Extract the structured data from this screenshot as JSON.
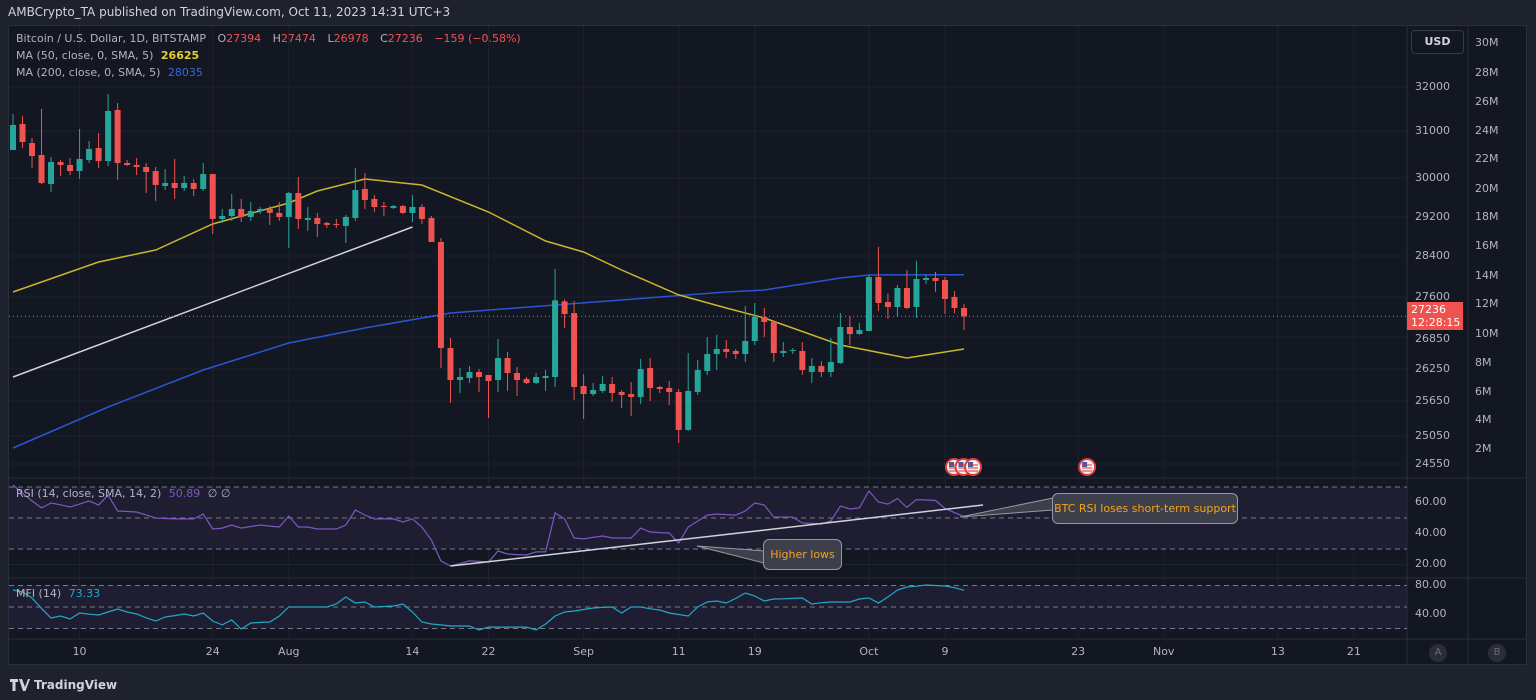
{
  "header": {
    "publisher_line": "AMBCrypto_TA published on TradingView.com, Oct 11, 2023 14:31 UTC+3"
  },
  "legend": {
    "symbol": "Bitcoin / U.S. Dollar, 1D, BITSTAMP",
    "o_label": "O",
    "o_value": "27394",
    "h_label": "H",
    "h_value": "27474",
    "l_label": "L",
    "l_value": "26978",
    "c_label": "C",
    "c_value": "27236",
    "change": "−159 (−0.58%)",
    "ma50_label": "MA (50, close, 0, SMA, 5)",
    "ma50_value": "26625",
    "ma200_label": "MA (200, close, 0, SMA, 5)",
    "ma200_value": "28035"
  },
  "price_axis": {
    "currency_button": "USD",
    "ticks": [
      "32000",
      "31000",
      "30000",
      "29200",
      "28400",
      "27600",
      "26850",
      "26250",
      "25650",
      "25050",
      "24550"
    ],
    "last_price": "27236",
    "countdown": "12:28:15"
  },
  "volume_axis": {
    "ticks": [
      "30M",
      "28M",
      "26M",
      "24M",
      "22M",
      "20M",
      "18M",
      "16M",
      "14M",
      "12M",
      "10M",
      "8M",
      "6M",
      "4M",
      "2M"
    ]
  },
  "time_axis": {
    "ticks": [
      "10",
      "24",
      "Aug",
      "14",
      "22",
      "Sep",
      "11",
      "19",
      "Oct",
      "9",
      "23",
      "Nov",
      "13",
      "21"
    ],
    "buttons": [
      "A",
      "B"
    ]
  },
  "rsi": {
    "label": "RSI (14, close, SMA, 14, 2)",
    "value": "50.89",
    "extra": "∅ ∅",
    "ticks": [
      "60.00",
      "40.00",
      "20.00"
    ]
  },
  "mfi": {
    "label": "MFI (14)",
    "value": "73.33",
    "ticks": [
      "80.00",
      "40.00"
    ]
  },
  "annotations": {
    "higher_lows": "Higher lows",
    "rsi_support": "BTC RSI loses short-term support"
  },
  "events": {
    "icon": "us-flag-icon",
    "dates": [
      "2023-10-11",
      "2023-10-12",
      "2023-10-13",
      "2023-10-25"
    ]
  },
  "footer": {
    "brand": "TradingView"
  },
  "colors": {
    "up": "#26a69a",
    "down": "#ef5350",
    "ma50": "#c8b62c",
    "ma200": "#2a55d4",
    "rsi": "#7e57c2",
    "mfi": "#22a9c6",
    "trendline": "#d1d4dc",
    "background": "#131722"
  },
  "chart_data": {
    "type": "candlestick",
    "title": "Bitcoin / U.S. Dollar, 1D, BITSTAMP",
    "ylim": [
      24450,
      32300
    ],
    "grid": true,
    "candles_fields": [
      "date",
      "open",
      "high",
      "low",
      "close"
    ],
    "candles": [
      [
        "2023-07-03",
        30595,
        31387,
        30595,
        31137
      ],
      [
        "2023-07-04",
        31160,
        31342,
        30638,
        30766
      ],
      [
        "2023-07-05",
        30744,
        30851,
        30212,
        30468
      ],
      [
        "2023-07-06",
        30489,
        31501,
        29877,
        29898
      ],
      [
        "2023-07-07",
        29877,
        30446,
        29713,
        30340
      ],
      [
        "2023-07-08",
        30340,
        30383,
        30042,
        30276
      ],
      [
        "2023-07-09",
        30276,
        30425,
        30063,
        30148
      ],
      [
        "2023-07-10",
        30148,
        31047,
        29980,
        30404
      ],
      [
        "2023-07-11",
        30383,
        30787,
        30319,
        30617
      ],
      [
        "2023-07-12",
        30638,
        30957,
        30212,
        30361
      ],
      [
        "2023-07-13",
        30361,
        31841,
        30255,
        31455
      ],
      [
        "2023-07-14",
        31478,
        31637,
        29959,
        30319
      ],
      [
        "2023-07-15",
        30319,
        30383,
        30255,
        30276
      ],
      [
        "2023-07-16",
        30276,
        30425,
        30063,
        30234
      ],
      [
        "2023-07-17",
        30234,
        30319,
        29693,
        30127
      ],
      [
        "2023-07-18",
        30148,
        30234,
        29529,
        29857
      ],
      [
        "2023-07-19",
        29836,
        30191,
        29754,
        29898
      ],
      [
        "2023-07-20",
        29898,
        30404,
        29570,
        29795
      ],
      [
        "2023-07-21",
        29795,
        30042,
        29734,
        29898
      ],
      [
        "2023-07-22",
        29898,
        29980,
        29631,
        29775
      ],
      [
        "2023-07-23",
        29775,
        30319,
        29734,
        30085
      ],
      [
        "2023-07-24",
        30085,
        30085,
        28852,
        29160
      ],
      [
        "2023-07-25",
        29160,
        29365,
        29078,
        29221
      ],
      [
        "2023-07-26",
        29221,
        29672,
        29119,
        29365
      ],
      [
        "2023-07-27",
        29365,
        29570,
        29098,
        29201
      ],
      [
        "2023-07-28",
        29201,
        29508,
        29119,
        29324
      ],
      [
        "2023-07-29",
        29324,
        29406,
        29262,
        29365
      ],
      [
        "2023-07-30",
        29365,
        29426,
        29037,
        29283
      ],
      [
        "2023-07-31",
        29283,
        29508,
        29119,
        29201
      ],
      [
        "2023-08-01",
        29201,
        29713,
        28565,
        29693
      ],
      [
        "2023-08-02",
        29693,
        30021,
        28955,
        29160
      ],
      [
        "2023-08-03",
        29139,
        29406,
        28914,
        29180
      ],
      [
        "2023-08-04",
        29180,
        29283,
        28791,
        29057
      ],
      [
        "2023-08-05",
        29078,
        29098,
        28975,
        29037
      ],
      [
        "2023-08-06",
        29057,
        29160,
        28975,
        29037
      ],
      [
        "2023-08-07",
        29016,
        29242,
        28668,
        29201
      ],
      [
        "2023-08-08",
        29180,
        30212,
        29119,
        29754
      ],
      [
        "2023-08-09",
        29775,
        30106,
        29365,
        29549
      ],
      [
        "2023-08-10",
        29570,
        29652,
        29303,
        29406
      ],
      [
        "2023-08-11",
        29426,
        29508,
        29221,
        29406
      ],
      [
        "2023-08-12",
        29385,
        29447,
        29365,
        29426
      ],
      [
        "2023-08-13",
        29426,
        29447,
        29262,
        29283
      ],
      [
        "2023-08-14",
        29283,
        29652,
        29098,
        29406
      ],
      [
        "2023-08-15",
        29406,
        29467,
        29057,
        29160
      ],
      [
        "2023-08-16",
        29180,
        29221,
        28688,
        28688
      ],
      [
        "2023-08-17",
        28688,
        28770,
        26269,
        26644
      ],
      [
        "2023-08-18",
        26644,
        26831,
        25616,
        26044
      ],
      [
        "2023-08-19",
        26044,
        26269,
        25800,
        26100
      ],
      [
        "2023-08-20",
        26081,
        26306,
        25988,
        26194
      ],
      [
        "2023-08-21",
        26194,
        26250,
        25819,
        26100
      ],
      [
        "2023-08-22",
        26138,
        26138,
        25359,
        26025
      ],
      [
        "2023-08-23",
        26044,
        26813,
        25819,
        26456
      ],
      [
        "2023-08-24",
        26456,
        26569,
        25838,
        26175
      ],
      [
        "2023-08-25",
        26175,
        26288,
        25744,
        26044
      ],
      [
        "2023-08-26",
        26063,
        26100,
        25969,
        25988
      ],
      [
        "2023-08-27",
        25988,
        26175,
        25969,
        26100
      ],
      [
        "2023-08-28",
        26081,
        26231,
        25838,
        26119
      ],
      [
        "2023-08-29",
        26100,
        28147,
        25913,
        27537
      ],
      [
        "2023-08-30",
        27518,
        27557,
        27019,
        27281
      ],
      [
        "2023-08-31",
        27300,
        27525,
        25669,
        25913
      ],
      [
        "2023-09-01",
        25931,
        26156,
        25342,
        25781
      ],
      [
        "2023-09-02",
        25781,
        25988,
        25744,
        25856
      ],
      [
        "2023-09-03",
        25838,
        26119,
        25800,
        25969
      ],
      [
        "2023-09-04",
        25969,
        26100,
        25633,
        25800
      ],
      [
        "2023-09-05",
        25819,
        25856,
        25530,
        25763
      ],
      [
        "2023-09-06",
        25781,
        26006,
        25393,
        25725
      ],
      [
        "2023-09-07",
        25725,
        26438,
        25599,
        26250
      ],
      [
        "2023-09-08",
        26269,
        26456,
        25650,
        25894
      ],
      [
        "2023-09-09",
        25913,
        25931,
        25800,
        25875
      ],
      [
        "2023-09-10",
        25894,
        26025,
        25582,
        25819
      ],
      [
        "2023-09-11",
        25819,
        25875,
        24925,
        25154
      ],
      [
        "2023-09-12",
        25154,
        26550,
        25137,
        25838
      ],
      [
        "2023-09-13",
        25819,
        26419,
        25763,
        26231
      ],
      [
        "2023-09-14",
        26213,
        26850,
        26138,
        26531
      ],
      [
        "2023-09-15",
        26531,
        26888,
        26231,
        26625
      ],
      [
        "2023-09-16",
        26625,
        26794,
        26456,
        26569
      ],
      [
        "2023-09-17",
        26588,
        26625,
        26438,
        26531
      ],
      [
        "2023-09-18",
        26531,
        27431,
        26381,
        26775
      ],
      [
        "2023-09-19",
        26775,
        27487,
        26700,
        27225
      ],
      [
        "2023-09-20",
        27225,
        27394,
        26850,
        27131
      ],
      [
        "2023-09-21",
        27131,
        27150,
        26381,
        26550
      ],
      [
        "2023-09-22",
        26550,
        26756,
        26475,
        26588
      ],
      [
        "2023-09-23",
        26588,
        26644,
        26531,
        26606
      ],
      [
        "2023-09-24",
        26588,
        26756,
        26138,
        26231
      ],
      [
        "2023-09-25",
        26194,
        26456,
        25988,
        26306
      ],
      [
        "2023-09-26",
        26306,
        26400,
        26100,
        26194
      ],
      [
        "2023-09-27",
        26194,
        26831,
        26100,
        26381
      ],
      [
        "2023-09-28",
        26363,
        27300,
        26344,
        27038
      ],
      [
        "2023-09-29",
        27038,
        27244,
        26700,
        26906
      ],
      [
        "2023-09-30",
        26906,
        27113,
        26888,
        26981
      ],
      [
        "2023-10-01",
        26963,
        28030,
        26963,
        27990
      ],
      [
        "2023-10-02",
        27990,
        28585,
        27338,
        27488
      ],
      [
        "2023-10-03",
        27506,
        27665,
        27188,
        27413
      ],
      [
        "2023-10-04",
        27413,
        27835,
        27225,
        27776
      ],
      [
        "2023-10-05",
        27776,
        28127,
        27375,
        27394
      ],
      [
        "2023-10-06",
        27413,
        28303,
        27206,
        27951
      ],
      [
        "2023-10-07",
        27932,
        28030,
        27854,
        27971
      ],
      [
        "2023-10-08",
        27971,
        28088,
        27698,
        27913
      ],
      [
        "2023-10-09",
        27932,
        27990,
        27281,
        27563
      ],
      [
        "2023-10-10",
        27600,
        27718,
        27300,
        27394
      ],
      [
        "2023-10-11",
        27394,
        27474,
        26978,
        27236
      ]
    ],
    "ma50": [
      [
        "2023-07-03",
        27698
      ],
      [
        "2023-07-06",
        27893
      ],
      [
        "2023-07-12",
        28283
      ],
      [
        "2023-07-18",
        28523
      ],
      [
        "2023-07-24",
        29057
      ],
      [
        "2023-08-01",
        29487
      ],
      [
        "2023-08-04",
        29733
      ],
      [
        "2023-08-09",
        29980
      ],
      [
        "2023-08-15",
        29857
      ],
      [
        "2023-08-22",
        29303
      ],
      [
        "2023-08-28",
        28708
      ],
      [
        "2023-09-01",
        28483
      ],
      [
        "2023-09-05",
        28127
      ],
      [
        "2023-09-11",
        27640
      ],
      [
        "2023-09-16",
        27394
      ],
      [
        "2023-09-20",
        27206
      ],
      [
        "2023-09-28",
        26700
      ],
      [
        "2023-10-05",
        26456
      ],
      [
        "2023-10-11",
        26625
      ]
    ],
    "ma200": [
      [
        "2023-07-03",
        24835
      ],
      [
        "2023-07-13",
        25547
      ],
      [
        "2023-07-23",
        26231
      ],
      [
        "2023-08-01",
        26738
      ],
      [
        "2023-08-09",
        27019
      ],
      [
        "2023-08-18",
        27300
      ],
      [
        "2023-08-29",
        27450
      ],
      [
        "2023-09-16",
        27698
      ],
      [
        "2023-09-20",
        27737
      ],
      [
        "2023-09-28",
        27971
      ],
      [
        "2023-10-01",
        28030
      ],
      [
        "2023-10-11",
        28035
      ]
    ],
    "price_trendline": [
      [
        "2023-07-03",
        26100
      ],
      [
        "2023-08-14",
        28995
      ]
    ],
    "rsi_series": [
      71.3,
      66,
      61,
      56.5,
      59.7,
      58.5,
      57.1,
      59,
      61,
      58.4,
      64.8,
      54.5,
      54.2,
      53.9,
      52,
      50,
      49.7,
      49.4,
      49.4,
      49.4,
      52.6,
      42.9,
      43.5,
      45.5,
      43.5,
      44.5,
      45.5,
      44.8,
      44.2,
      51.3,
      44.2,
      44.2,
      42.9,
      42.9,
      42.9,
      45.5,
      55.2,
      51.9,
      49.4,
      49.4,
      49.4,
      47.4,
      49.4,
      44.2,
      35.8,
      22.3,
      19,
      20.6,
      22.3,
      22,
      21.6,
      28.7,
      26.8,
      26.4,
      26.1,
      28.1,
      28.1,
      53.2,
      49.4,
      37.1,
      36.5,
      37.5,
      38.4,
      37.1,
      37.1,
      37.1,
      43.5,
      41,
      40.6,
      40.3,
      33.9,
      44.2,
      48,
      51.9,
      52.6,
      52.2,
      51.9,
      54.5,
      59.7,
      58.4,
      50.6,
      50.6,
      50.6,
      46.8,
      46.5,
      46.1,
      48.1,
      57.7,
      55.8,
      56.5,
      67.4,
      60.3,
      59,
      62.6,
      56.8,
      61.9,
      61.6,
      61.3,
      56.1,
      53.5,
      50.9
    ],
    "rsi_levels": [
      70,
      50,
      30
    ],
    "rsi_trendline": [
      [
        "2023-08-18",
        19.0
      ],
      [
        "2023-10-13",
        58.4
      ]
    ],
    "mfi_series": [
      73.7,
      71,
      62.6,
      48,
      34.7,
      37.5,
      33.3,
      41.6,
      40,
      38.8,
      43,
      47.2,
      43,
      40.3,
      35,
      30.5,
      36,
      38,
      40.3,
      37.5,
      41.6,
      30.5,
      25,
      32,
      19.3,
      27.7,
      28.5,
      29.1,
      37.5,
      50,
      50,
      50,
      50,
      50,
      54.2,
      64,
      55.6,
      57,
      50,
      50.7,
      51.4,
      54.2,
      43,
      29.1,
      26.3,
      25,
      23.5,
      23.5,
      23.5,
      18,
      22,
      22,
      22,
      22,
      22,
      18,
      26.3,
      37.5,
      43,
      44.4,
      46.5,
      48.6,
      49.5,
      50,
      41.6,
      50,
      50,
      47.5,
      45.8,
      41.6,
      39.5,
      37.5,
      50,
      57,
      58.4,
      55.6,
      62,
      69.5,
      65.4,
      58.4,
      61.2,
      61.5,
      62,
      62.6,
      54.2,
      56,
      57,
      57,
      57,
      61.2,
      62.6,
      55.6,
      64,
      73.7,
      77.9,
      79,
      80.7,
      80,
      79.3,
      77,
      73.3
    ],
    "mfi_levels": [
      80,
      50,
      20
    ]
  }
}
